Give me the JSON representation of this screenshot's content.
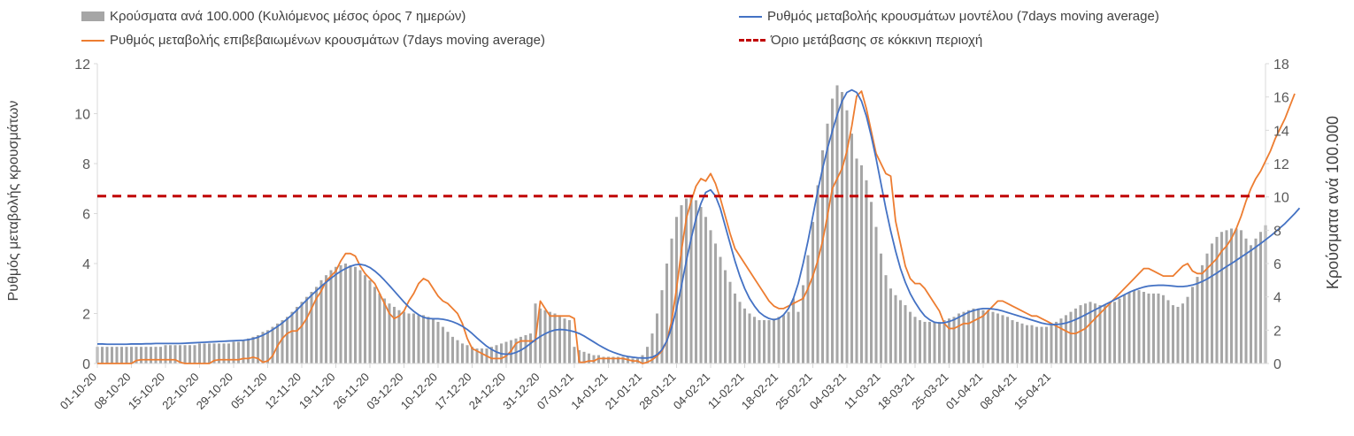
{
  "legend": {
    "bars_label": "Κρούσματα ανά 100.000 (Κυλιόμενος μέσος όρος 7 ημερών)",
    "model_label": "Ρυθμός μεταβολής κρουσμάτων μοντέλου (7days moving average)",
    "confirmed_label": "Ρυθμός μεταβολής επιβεβαιωμένων κρουσμάτων (7days moving average)",
    "threshold_label": "Όριο μετάβασης σε κόκκινη περιοχή"
  },
  "chart_data": {
    "type": "bar",
    "ylabel_left": "Ρυθμός μεταβολής κρουσμάτων",
    "ylabel_right": "Κρούσματα ανά 100.000",
    "ylim_left": [
      0,
      12
    ],
    "ylim_right": [
      0,
      18
    ],
    "yticks_left": [
      0,
      2,
      4,
      6,
      8,
      10,
      12
    ],
    "yticks_right": [
      0,
      2,
      4,
      6,
      8,
      10,
      12,
      14,
      16,
      18
    ],
    "x_start_date": "2020-10-01",
    "x_tick_labels": [
      "01-10-20",
      "08-10-20",
      "15-10-20",
      "22-10-20",
      "29-10-20",
      "05-11-20",
      "12-11-20",
      "19-11-20",
      "26-11-20",
      "03-12-20",
      "10-12-20",
      "17-12-20",
      "24-12-20",
      "31-12-20",
      "07-01-21",
      "14-01-21",
      "21-01-21",
      "28-01-21",
      "04-02-21",
      "11-02-21",
      "18-02-21",
      "25-02-21",
      "04-03-21",
      "11-03-21",
      "18-03-21",
      "25-03-21",
      "01-04-21",
      "08-04-21",
      "15-04-21"
    ],
    "grid": false,
    "legend_position": "top",
    "colors": {
      "bars": "#a6a6a6",
      "model": "#4472c4",
      "confirmed": "#ed7d31",
      "threshold": "#c00000",
      "axis": "#d9d9d9"
    },
    "series": [
      {
        "name": "Κρούσματα ανά 100.000 (Κυλιόμενος μέσος όρος 7 ημερών)",
        "type": "bar",
        "axis": "right",
        "values": [
          1.0,
          1.0,
          1.0,
          1.0,
          1.0,
          1.0,
          1.0,
          1.0,
          1.0,
          1.0,
          1.0,
          1.0,
          1.0,
          1.0,
          1.1,
          1.1,
          1.1,
          1.1,
          1.1,
          1.1,
          1.1,
          1.2,
          1.2,
          1.2,
          1.2,
          1.2,
          1.2,
          1.2,
          1.3,
          1.3,
          1.4,
          1.5,
          1.6,
          1.7,
          1.9,
          2.0,
          2.2,
          2.4,
          2.6,
          2.8,
          3.1,
          3.4,
          3.7,
          4.0,
          4.3,
          4.6,
          5.0,
          5.3,
          5.6,
          5.8,
          5.9,
          6.0,
          5.9,
          5.8,
          5.6,
          5.3,
          5.0,
          4.6,
          4.2,
          3.9,
          3.6,
          3.4,
          3.2,
          3.1,
          3.0,
          3.0,
          2.9,
          2.9,
          2.8,
          2.7,
          2.5,
          2.2,
          1.9,
          1.6,
          1.4,
          1.2,
          1.1,
          1.0,
          0.9,
          0.9,
          0.9,
          1.0,
          1.1,
          1.2,
          1.3,
          1.4,
          1.5,
          1.6,
          1.7,
          1.8,
          3.6,
          3.3,
          3.2,
          3.1,
          3.0,
          2.9,
          2.7,
          2.6,
          1.0,
          0.8,
          0.7,
          0.6,
          0.5,
          0.5,
          0.4,
          0.4,
          0.4,
          0.4,
          0.4,
          0.4,
          0.3,
          0.3,
          0.5,
          1.0,
          1.8,
          3.0,
          4.4,
          6.0,
          7.5,
          8.8,
          9.5,
          9.9,
          10.0,
          9.8,
          9.4,
          8.8,
          8.0,
          7.2,
          6.4,
          5.6,
          4.9,
          4.2,
          3.7,
          3.3,
          3.0,
          2.8,
          2.6,
          2.6,
          2.6,
          2.7,
          2.8,
          2.9,
          3.1,
          3.9,
          3.1,
          4.7,
          6.5,
          8.5,
          10.7,
          12.8,
          14.4,
          15.9,
          16.7,
          16.3,
          15.2,
          13.8,
          12.3,
          11.9,
          11.0,
          9.7,
          8.2,
          6.6,
          5.3,
          4.5,
          4.1,
          3.8,
          3.5,
          3.1,
          2.8,
          2.6,
          2.5,
          2.5,
          2.5,
          2.5,
          2.6,
          2.7,
          2.8,
          3.0,
          3.1,
          3.2,
          3.3,
          3.3,
          3.2,
          3.2,
          3.1,
          3.0,
          2.9,
          2.8,
          2.6,
          2.5,
          2.4,
          2.3,
          2.3,
          2.2,
          2.2,
          2.2,
          2.3,
          2.5,
          2.7,
          2.9,
          3.1,
          3.3,
          3.5,
          3.6,
          3.7,
          3.6,
          3.5,
          3.5,
          3.6,
          3.7,
          3.9,
          4.1,
          4.3,
          4.4,
          4.4,
          4.3,
          4.2,
          4.2,
          4.2,
          4.1,
          3.8,
          3.5,
          3.4,
          3.6,
          4.0,
          4.6,
          5.2,
          5.9,
          6.6,
          7.2,
          7.6,
          7.9,
          8.0,
          8.1,
          8.1,
          8.0,
          7.5,
          7.1,
          7.5,
          7.9,
          8.3
        ]
      },
      {
        "name": "Ρυθμός μεταβολής κρουσμάτων μοντέλου (7days moving average)",
        "type": "line",
        "axis": "left",
        "values": [
          0.78,
          0.78,
          0.77,
          0.77,
          0.77,
          0.77,
          0.77,
          0.78,
          0.78,
          0.78,
          0.79,
          0.79,
          0.8,
          0.8,
          0.8,
          0.8,
          0.8,
          0.8,
          0.81,
          0.82,
          0.83,
          0.84,
          0.85,
          0.86,
          0.87,
          0.88,
          0.89,
          0.9,
          0.91,
          0.92,
          0.93,
          0.95,
          0.99,
          1.05,
          1.13,
          1.23,
          1.35,
          1.48,
          1.62,
          1.78,
          1.95,
          2.14,
          2.34,
          2.54,
          2.73,
          2.91,
          3.09,
          3.25,
          3.41,
          3.56,
          3.69,
          3.8,
          3.89,
          3.95,
          3.97,
          3.93,
          3.84,
          3.7,
          3.53,
          3.33,
          3.12,
          2.9,
          2.68,
          2.46,
          2.26,
          2.09,
          1.95,
          1.85,
          1.8,
          1.79,
          1.79,
          1.77,
          1.73,
          1.67,
          1.59,
          1.49,
          1.36,
          1.2,
          1.02,
          0.85,
          0.69,
          0.56,
          0.46,
          0.39,
          0.37,
          0.38,
          0.44,
          0.53,
          0.65,
          0.8,
          0.95,
          1.08,
          1.19,
          1.28,
          1.34,
          1.36,
          1.35,
          1.32,
          1.27,
          1.2,
          1.1,
          0.98,
          0.86,
          0.74,
          0.63,
          0.53,
          0.45,
          0.38,
          0.32,
          0.28,
          0.25,
          0.23,
          0.22,
          0.22,
          0.25,
          0.35,
          0.55,
          0.9,
          1.45,
          2.2,
          3.1,
          4.1,
          5.0,
          5.8,
          6.4,
          6.85,
          6.95,
          6.7,
          6.2,
          5.5,
          4.8,
          4.1,
          3.5,
          3.0,
          2.6,
          2.3,
          2.05,
          1.9,
          1.8,
          1.75,
          1.8,
          1.95,
          2.2,
          2.6,
          3.2,
          4.0,
          4.9,
          5.9,
          6.9,
          7.8,
          8.6,
          9.3,
          9.95,
          10.5,
          10.85,
          10.95,
          10.85,
          10.5,
          9.9,
          9.1,
          8.2,
          7.2,
          6.2,
          5.3,
          4.5,
          3.8,
          3.25,
          2.8,
          2.45,
          2.15,
          1.9,
          1.75,
          1.65,
          1.62,
          1.63,
          1.68,
          1.75,
          1.85,
          1.95,
          2.05,
          2.12,
          2.17,
          2.2,
          2.2,
          2.18,
          2.15,
          2.1,
          2.04,
          1.98,
          1.92,
          1.86,
          1.8,
          1.74,
          1.68,
          1.62,
          1.58,
          1.56,
          1.56,
          1.58,
          1.62,
          1.68,
          1.76,
          1.85,
          1.95,
          2.05,
          2.15,
          2.25,
          2.35,
          2.45,
          2.55,
          2.65,
          2.75,
          2.85,
          2.93,
          3.0,
          3.06,
          3.1,
          3.12,
          3.13,
          3.13,
          3.12,
          3.1,
          3.08,
          3.08,
          3.1,
          3.14,
          3.2,
          3.28,
          3.38,
          3.5,
          3.62,
          3.75,
          3.88,
          4.0,
          4.13,
          4.26,
          4.39,
          4.52,
          4.66,
          4.8,
          4.95,
          5.1,
          5.26,
          5.43,
          5.6,
          5.8,
          6.0,
          6.22
        ]
      },
      {
        "name": "Ρυθμός μεταβολής επιβεβαιωμένων κρουσμάτων (7days moving average)",
        "type": "line",
        "axis": "left",
        "values": [
          0.0,
          0.0,
          0.0,
          0.0,
          0.0,
          0.0,
          0.0,
          0.0,
          0.12,
          0.15,
          0.15,
          0.15,
          0.15,
          0.15,
          0.15,
          0.15,
          0.15,
          0.05,
          0.0,
          0.0,
          0.0,
          0.0,
          0.0,
          0.0,
          0.12,
          0.15,
          0.15,
          0.15,
          0.15,
          0.15,
          0.2,
          0.2,
          0.25,
          0.2,
          0.05,
          0.1,
          0.3,
          0.7,
          1.0,
          1.2,
          1.3,
          1.3,
          1.5,
          1.8,
          2.2,
          2.6,
          2.9,
          3.3,
          3.5,
          3.7,
          4.1,
          4.4,
          4.4,
          4.3,
          3.9,
          3.6,
          3.4,
          3.2,
          2.8,
          2.4,
          2.0,
          1.8,
          1.9,
          2.1,
          2.5,
          2.8,
          3.2,
          3.4,
          3.3,
          3.0,
          2.7,
          2.5,
          2.4,
          2.2,
          2.0,
          1.6,
          1.0,
          0.6,
          0.5,
          0.4,
          0.3,
          0.2,
          0.2,
          0.2,
          0.3,
          0.5,
          0.8,
          0.9,
          0.9,
          0.9,
          0.9,
          2.5,
          2.2,
          1.9,
          1.9,
          1.9,
          1.9,
          1.9,
          1.8,
          0.05,
          0.05,
          0.1,
          0.1,
          0.2,
          0.2,
          0.2,
          0.2,
          0.2,
          0.2,
          0.15,
          0.1,
          0.1,
          0.0,
          0.05,
          0.15,
          0.3,
          0.5,
          0.9,
          1.7,
          3.0,
          4.5,
          5.8,
          6.5,
          7.1,
          7.4,
          7.3,
          7.6,
          7.2,
          6.6,
          5.9,
          5.2,
          4.6,
          4.3,
          4.0,
          3.7,
          3.4,
          3.1,
          2.8,
          2.5,
          2.3,
          2.2,
          2.2,
          2.3,
          2.4,
          2.5,
          2.6,
          3.0,
          3.5,
          4.1,
          4.9,
          5.9,
          7.0,
          7.4,
          7.8,
          8.5,
          9.5,
          10.7,
          10.9,
          10.2,
          9.3,
          8.4,
          8.0,
          7.6,
          7.5,
          5.7,
          4.8,
          3.9,
          3.4,
          3.2,
          3.2,
          3.0,
          2.7,
          2.4,
          2.1,
          1.6,
          1.4,
          1.4,
          1.5,
          1.6,
          1.6,
          1.7,
          1.8,
          1.9,
          2.1,
          2.3,
          2.5,
          2.5,
          2.4,
          2.3,
          2.2,
          2.1,
          2.0,
          1.9,
          1.9,
          1.8,
          1.7,
          1.6,
          1.5,
          1.4,
          1.3,
          1.2,
          1.2,
          1.3,
          1.4,
          1.6,
          1.8,
          2.0,
          2.2,
          2.4,
          2.6,
          2.8,
          3.0,
          3.2,
          3.4,
          3.6,
          3.8,
          3.8,
          3.7,
          3.6,
          3.5,
          3.5,
          3.5,
          3.7,
          3.9,
          4.0,
          3.7,
          3.6,
          3.6,
          3.8,
          4.0,
          4.2,
          4.5,
          4.7,
          5.0,
          5.4,
          5.9,
          6.5,
          7.0,
          7.4,
          7.7,
          8.1,
          8.5,
          9.0,
          9.4,
          9.8,
          10.3,
          10.8
        ]
      },
      {
        "name": "Όριο μετάβασης σε κόκκινη περιοχή",
        "type": "line",
        "axis": "left",
        "constant": 6.7
      }
    ]
  }
}
